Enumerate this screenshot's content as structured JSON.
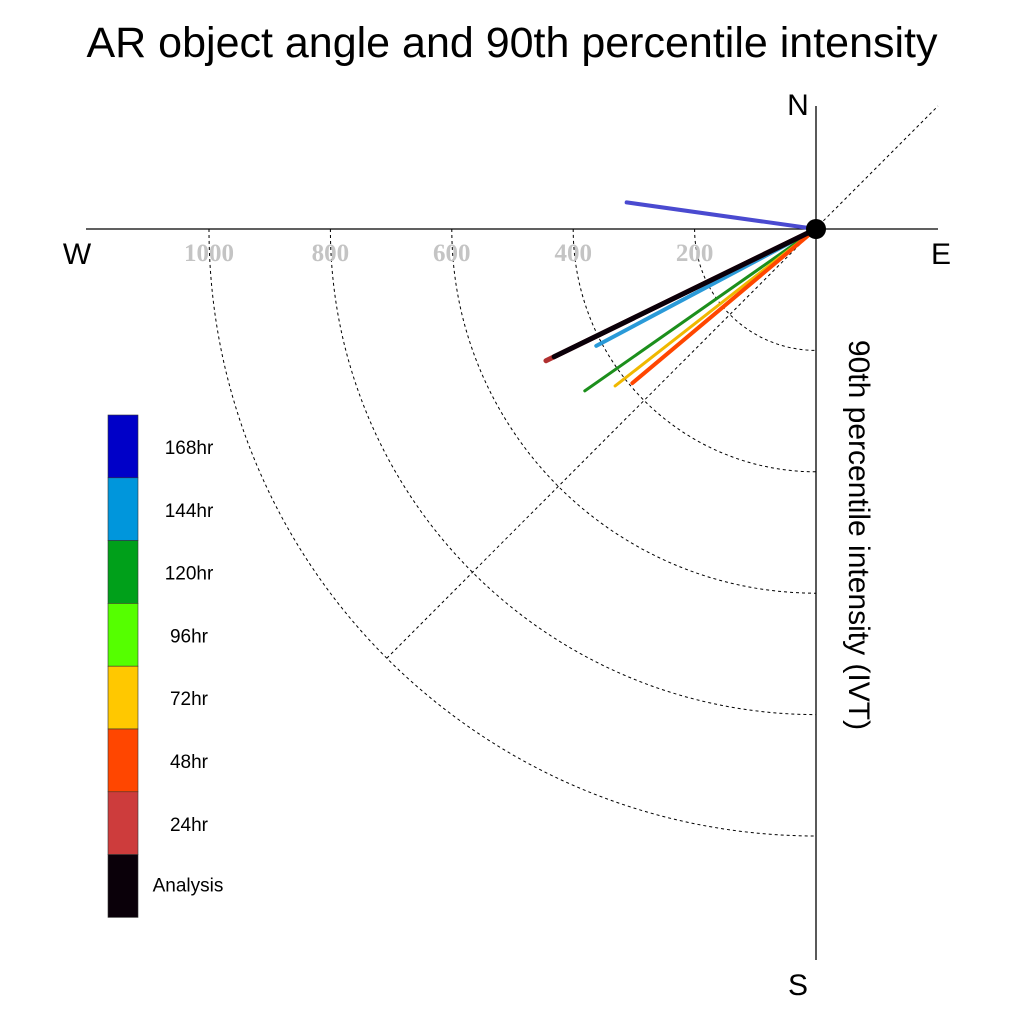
{
  "chart_data": {
    "type": "polar-vector",
    "title": "AR object angle and 90th percentile intensity",
    "radial_label": "90th percentile intensity (IVT)",
    "compass": {
      "north": "N",
      "south": "S",
      "east": "E",
      "west": "W"
    },
    "radial_ticks": [
      200,
      400,
      600,
      800,
      1000
    ],
    "tick_labels": [
      "200",
      "400",
      "600",
      "800",
      "1000"
    ],
    "rmax": 1200,
    "grid": true,
    "legend_position": "left",
    "series": [
      {
        "name": "168hr",
        "color": "#0000c8",
        "draw_color": "#4a4ad0",
        "angle_deg": 172,
        "intensity": 315,
        "width": 4
      },
      {
        "name": "144hr",
        "color": "#0096dc",
        "draw_color": "#2a9ad8",
        "angle_deg": 208,
        "intensity": 410,
        "width": 4
      },
      {
        "name": "120hr",
        "color": "#00a01a",
        "draw_color": "#1c8f1c",
        "angle_deg": 215,
        "intensity": 465,
        "width": 3
      },
      {
        "name": "96hr",
        "color": "#55ff00",
        "draw_color": "#55e21a",
        "angle_deg": 220,
        "intensity": 340,
        "width": 3
      },
      {
        "name": "72hr",
        "color": "#ffc800",
        "draw_color": "#f0b800",
        "angle_deg": 218,
        "intensity": 420,
        "width": 3
      },
      {
        "name": "48hr",
        "color": "#ff4600",
        "draw_color": "#ff4600",
        "angle_deg": 220,
        "intensity": 395,
        "width": 4
      },
      {
        "name": "24hr",
        "color": "#cd3c3c",
        "draw_color": "#b03030",
        "angle_deg": 206,
        "intensity": 495,
        "width": 5
      },
      {
        "name": "Analysis",
        "color": "#0a0009",
        "draw_color": "#0a0009",
        "angle_deg": 206,
        "intensity": 480,
        "width": 5
      }
    ]
  }
}
